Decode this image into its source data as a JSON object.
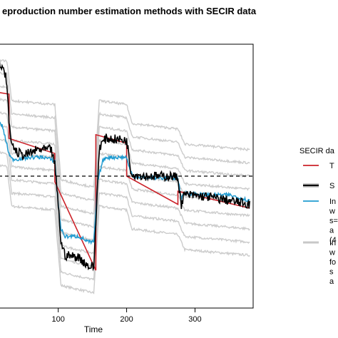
{
  "chart_data": {
    "type": "line",
    "title": "eproduction number estimation methods with SECIR data",
    "xlabel": "Time",
    "ylabel": "",
    "x_ticks": [
      "100",
      "200",
      "300"
    ],
    "xlim": [
      -6,
      385
    ],
    "ylim": [
      0.3,
      1.7
    ],
    "threshold": {
      "value": 1.0,
      "style": "dashed",
      "color": "#000000"
    },
    "grid": false,
    "legend": {
      "placement": "right",
      "title": "SECIR da",
      "items": [
        {
          "key": "true",
          "text": [
            "T"
          ],
          "color": "#cc2229"
        },
        {
          "key": "sim",
          "text": [
            "S"
          ],
          "color": "#000000"
        },
        {
          "key": "blue",
          "text": [
            "In",
            "w",
            "s=",
            "a",
            "(4"
          ],
          "color": "#1f9bd1"
        },
        {
          "key": "gray",
          "text": [
            "In",
            "w",
            "fo",
            "s",
            "a"
          ],
          "color": "#c8c8c8"
        }
      ]
    },
    "series": [
      {
        "key": "true",
        "type": "step",
        "color": "#cc2229",
        "x": [
          -6,
          28,
          28,
          95,
          95,
          155,
          155,
          200,
          200,
          275,
          275,
          380
        ],
        "y": [
          1.455,
          1.435,
          1.2,
          1.12,
          0.97,
          0.5,
          1.22,
          1.175,
          1.0,
          0.85,
          0.92,
          0.83
        ]
      },
      {
        "key": "sim",
        "type": "noisy",
        "color": "#000000",
        "x": [
          -6,
          8,
          18,
          24,
          30,
          38,
          50,
          70,
          90,
          95,
          100,
          104,
          110,
          130,
          145,
          152,
          160,
          165,
          170,
          200,
          203,
          206,
          210,
          230,
          250,
          268,
          275,
          280,
          284,
          288,
          320,
          350,
          380
        ],
        "y": [
          1.63,
          1.62,
          1.57,
          1.52,
          1.2,
          1.13,
          1.11,
          1.14,
          1.14,
          1.06,
          0.85,
          0.65,
          0.58,
          0.57,
          0.52,
          0.52,
          1.15,
          1.18,
          1.2,
          1.19,
          1.12,
          1.03,
          1.01,
          1.0,
          1.0,
          1.0,
          0.99,
          0.85,
          0.9,
          0.9,
          0.89,
          0.87,
          0.85
        ]
      },
      {
        "key": "blue",
        "type": "noisy",
        "color": "#1f9bd1",
        "x": [
          -6,
          10,
          18,
          22,
          28,
          32,
          40,
          60,
          80,
          95,
          100,
          104,
          110,
          130,
          145,
          152,
          158,
          165,
          170,
          200,
          205,
          210,
          230,
          260,
          275,
          280,
          285,
          320,
          350,
          380
        ],
        "y": [
          1.3,
          1.29,
          1.27,
          1.21,
          1.12,
          1.09,
          1.09,
          1.1,
          1.1,
          1.08,
          0.85,
          0.72,
          0.68,
          0.68,
          0.65,
          0.65,
          0.98,
          1.08,
          1.1,
          1.1,
          1.03,
          1.0,
          0.99,
          0.99,
          0.99,
          0.88,
          0.91,
          0.9,
          0.9,
          0.87
        ]
      },
      {
        "key": "gray",
        "type": "band",
        "color": "#cccccc",
        "spread": 0.07,
        "count": 9,
        "x": [
          -6,
          25,
          32,
          95,
          104,
          152,
          160,
          200,
          208,
          275,
          285,
          380
        ],
        "y": [
          1.35,
          1.33,
          1.12,
          1.1,
          0.7,
          0.66,
          1.12,
          1.1,
          1.0,
          0.97,
          0.89,
          0.86
        ]
      }
    ]
  }
}
